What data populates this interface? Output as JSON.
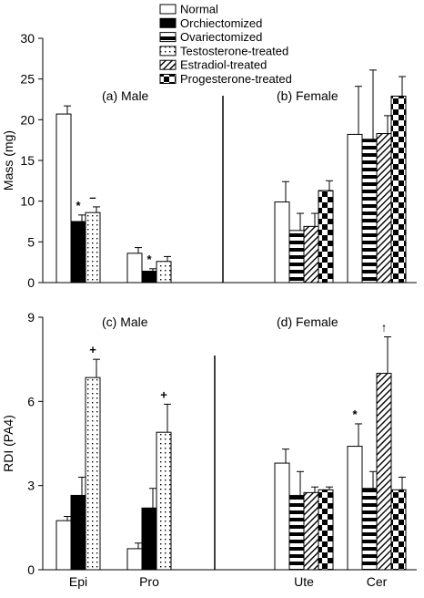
{
  "legend": [
    {
      "label": "Normal",
      "pattern": "white"
    },
    {
      "label": "Orchiectomized",
      "pattern": "black"
    },
    {
      "label": "Ovariectomized",
      "pattern": "hstripe"
    },
    {
      "label": "Testosterone-treated",
      "pattern": "dots"
    },
    {
      "label": "Estradiol-treated",
      "pattern": "diag"
    },
    {
      "label": "Progesterone-treated",
      "pattern": "checker"
    }
  ],
  "chart_data": [
    {
      "type": "bar",
      "ylabel": "Mass (mg)",
      "ylim": [
        0,
        30
      ],
      "yticks": [
        "0",
        "5",
        "10",
        "15",
        "20",
        "25",
        "30"
      ],
      "panels": [
        {
          "label": "(a) Male"
        },
        {
          "label": "(b) Female"
        }
      ],
      "groups": [
        {
          "category": "Epi",
          "bars": [
            {
              "series": "Normal",
              "value": 20.7,
              "error": 1.0
            },
            {
              "series": "Orchiectomized",
              "value": 7.5,
              "error": 0.8,
              "annotation": "*"
            },
            {
              "series": "Testosterone-treated",
              "value": 8.6,
              "error": 0.7,
              "annotation": "–"
            }
          ]
        },
        {
          "category": "Pro",
          "bars": [
            {
              "series": "Normal",
              "value": 3.6,
              "error": 0.7
            },
            {
              "series": "Orchiectomized",
              "value": 1.4,
              "error": 0.3,
              "annotation": "*"
            },
            {
              "series": "Testosterone-treated",
              "value": 2.6,
              "error": 0.6
            }
          ]
        },
        {
          "category": "Ute",
          "bars": [
            {
              "series": "Normal",
              "value": 9.9,
              "error": 2.5
            },
            {
              "series": "Ovariectomized",
              "value": 6.4,
              "error": 2.1
            },
            {
              "series": "Estradiol-treated",
              "value": 6.9,
              "error": 1.6
            },
            {
              "series": "Progesterone-treated",
              "value": 11.3,
              "error": 1.2
            }
          ]
        },
        {
          "category": "Cer",
          "bars": [
            {
              "series": "Normal",
              "value": 18.2,
              "error": 5.9
            },
            {
              "series": "Ovariectomized",
              "value": 17.6,
              "error": 8.5
            },
            {
              "series": "Estradiol-treated",
              "value": 18.3,
              "error": 2.2
            },
            {
              "series": "Progesterone-treated",
              "value": 22.9,
              "error": 2.4
            }
          ]
        }
      ]
    },
    {
      "type": "bar",
      "ylabel": "RDI (PA4)",
      "ylim": [
        0,
        9
      ],
      "yticks": [
        "0",
        "3",
        "6",
        "9"
      ],
      "panels": [
        {
          "label": "(c) Male"
        },
        {
          "label": "(d) Female"
        }
      ],
      "categories": [
        "Epi",
        "Pro",
        "Ute",
        "Cer"
      ],
      "groups": [
        {
          "category": "Epi",
          "bars": [
            {
              "series": "Normal",
              "value": 1.75,
              "error": 0.15
            },
            {
              "series": "Orchiectomized",
              "value": 2.65,
              "error": 0.65
            },
            {
              "series": "Testosterone-treated",
              "value": 6.85,
              "error": 0.65,
              "annotation": "+"
            }
          ]
        },
        {
          "category": "Pro",
          "bars": [
            {
              "series": "Normal",
              "value": 0.75,
              "error": 0.2
            },
            {
              "series": "Orchiectomized",
              "value": 2.2,
              "error": 0.7
            },
            {
              "series": "Testosterone-treated",
              "value": 4.9,
              "error": 1.0,
              "annotation": "+"
            }
          ]
        },
        {
          "category": "Ute",
          "bars": [
            {
              "series": "Normal",
              "value": 3.8,
              "error": 0.5
            },
            {
              "series": "Ovariectomized",
              "value": 2.65,
              "error": 0.85
            },
            {
              "series": "Estradiol-treated",
              "value": 2.75,
              "error": 0.2
            },
            {
              "series": "Progesterone-treated",
              "value": 2.85,
              "error": 0.1
            }
          ]
        },
        {
          "category": "Cer",
          "bars": [
            {
              "series": "Normal",
              "value": 4.4,
              "error": 0.8,
              "annotation": "*"
            },
            {
              "series": "Ovariectomized",
              "value": 2.9,
              "error": 0.6
            },
            {
              "series": "Estradiol-treated",
              "value": 7.0,
              "error": 1.3,
              "annotation": "↑"
            },
            {
              "series": "Progesterone-treated",
              "value": 2.85,
              "error": 0.45
            }
          ]
        }
      ]
    }
  ]
}
